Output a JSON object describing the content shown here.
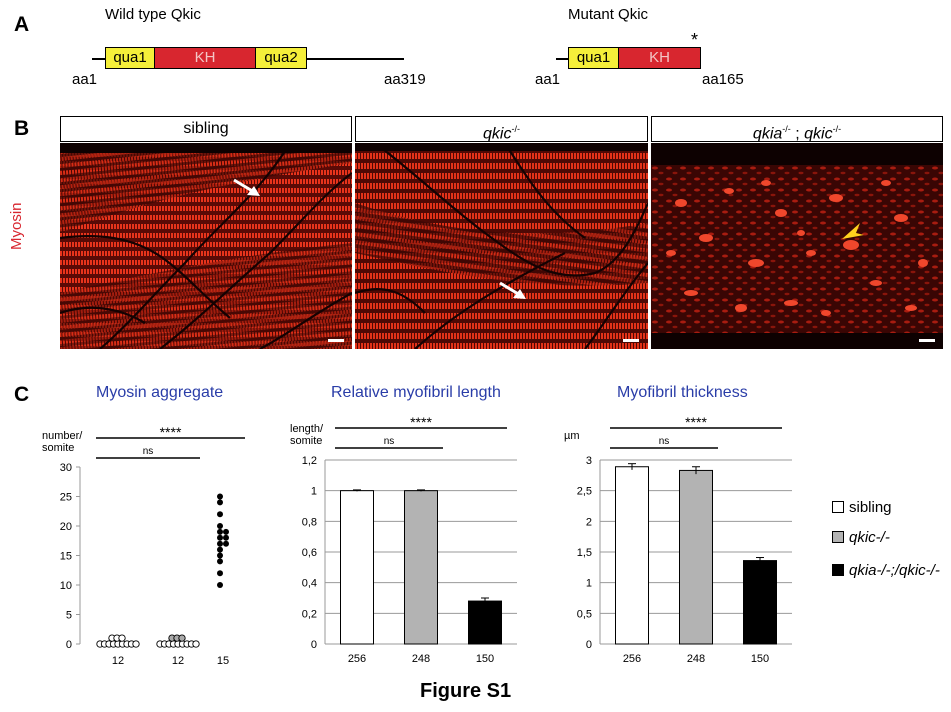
{
  "panels": {
    "a": "A",
    "b": "B",
    "c": "C"
  },
  "panel_a": {
    "wild_type": {
      "title": "Wild type Qkic",
      "domains": [
        "qua1",
        "KH",
        "qua2"
      ],
      "start": "aa1",
      "end": "aa319"
    },
    "mutant": {
      "title": "Mutant Qkic",
      "domains": [
        "qua1",
        "KH"
      ],
      "start": "aa1",
      "end": "aa165",
      "star": "*"
    }
  },
  "panel_b": {
    "ylabel": "Myosin",
    "headers": [
      "sibling",
      "qkic",
      "qkia",
      "qkic"
    ],
    "header_suffix": "-/-",
    "header_sep": " ; "
  },
  "legend": [
    {
      "label": "sibling",
      "color": "#ffffff"
    },
    {
      "label": "qkic-/-",
      "color": "#b3b3b3"
    },
    {
      "label": "qkia-/-;/qkic-/-",
      "color": "#000000"
    }
  ],
  "figure_caption": "Figure S1",
  "chart_data": [
    {
      "type": "scatter",
      "title": "Myosin aggregate",
      "ylabel": "number/ somite",
      "ylim": [
        0,
        30
      ],
      "yticks": [
        "0",
        "5",
        "10",
        "15",
        "20",
        "25",
        "30"
      ],
      "categories": [
        "12",
        "12",
        "15"
      ],
      "groups": [
        {
          "n_label": "12",
          "points": [
            0,
            0,
            0,
            0,
            0,
            0,
            0,
            0,
            0,
            1,
            1,
            1
          ]
        },
        {
          "n_label": "12",
          "points": [
            0,
            0,
            0,
            0,
            0,
            0,
            0,
            0,
            0,
            1,
            1,
            1
          ]
        },
        {
          "n_label": "15",
          "points": [
            10,
            12,
            14,
            15,
            16,
            17,
            17,
            18,
            18,
            19,
            19,
            20,
            22,
            24,
            25
          ]
        }
      ],
      "significance": [
        {
          "label": "****",
          "between": [
            0,
            2
          ]
        },
        {
          "label": "ns",
          "between": [
            0,
            1
          ]
        }
      ]
    },
    {
      "type": "bar",
      "title": "Relative myofibril length",
      "ylabel": "length/ somite",
      "ylim": [
        0,
        1.2
      ],
      "yticks": [
        "0",
        "0,2",
        "0,4",
        "0,6",
        "0,8",
        "1",
        "1,2"
      ],
      "categories": [
        "256",
        "248",
        "150"
      ],
      "values": [
        1.0,
        1.0,
        0.28
      ],
      "errors": [
        0.005,
        0.005,
        0.02
      ],
      "significance": [
        {
          "label": "****",
          "between": [
            0,
            2
          ]
        },
        {
          "label": "ns",
          "between": [
            0,
            1
          ]
        }
      ]
    },
    {
      "type": "bar",
      "title": "Myofibril thickness",
      "ylabel": "µm",
      "ylim": [
        0,
        3
      ],
      "yticks": [
        "0",
        "0,5",
        "1",
        "1,5",
        "2",
        "2,5",
        "3"
      ],
      "categories": [
        "256",
        "248",
        "150"
      ],
      "values": [
        2.89,
        2.83,
        1.36
      ],
      "errors": [
        0.05,
        0.06,
        0.05
      ],
      "significance": [
        {
          "label": "****",
          "between": [
            0,
            2
          ]
        },
        {
          "label": "ns",
          "between": [
            0,
            1
          ]
        }
      ]
    }
  ]
}
